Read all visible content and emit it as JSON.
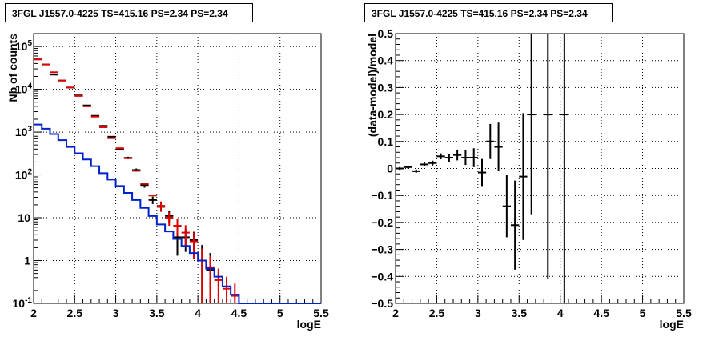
{
  "chart_data": [
    {
      "type": "step+errorbar",
      "title": "3FGL J1557.0-4225 TS=415.16 PS=2.34 PS=2.34",
      "xlabel": "logE",
      "ylabel": "Nb of counts",
      "xlim": [
        2,
        5.5
      ],
      "ylim": [
        0.1,
        200000
      ],
      "log_y": true,
      "grid": true,
      "x_ticks": [
        "2",
        "2.5",
        "3",
        "3.5",
        "4",
        "4.5",
        "5",
        "5.5"
      ],
      "y_ticks": [
        {
          "base": "10",
          "exp": "-1",
          "value": 0.1
        },
        {
          "base": "1",
          "exp": "",
          "value": 1
        },
        {
          "base": "10",
          "exp": "",
          "value": 10
        },
        {
          "base": "10",
          "exp": "2",
          "value": 100
        },
        {
          "base": "10",
          "exp": "3",
          "value": 1000
        },
        {
          "base": "10",
          "exp": "4",
          "value": 10000
        },
        {
          "base": "10",
          "exp": "5",
          "value": 100000
        }
      ],
      "bin_width": 0.1,
      "series": [
        {
          "color": "#000000",
          "kind": "errorbar",
          "x": [
            2.05,
            2.15,
            2.25,
            2.35,
            2.45,
            2.55,
            2.65,
            2.75,
            2.85,
            2.95,
            3.05,
            3.15,
            3.25,
            3.35,
            3.45,
            3.55,
            3.65,
            3.75,
            3.85,
            3.95,
            4.05,
            4.15
          ],
          "y": [
            50000,
            38000,
            22000,
            16000,
            11000,
            7200,
            4200,
            2400,
            1400,
            780,
            400,
            250,
            130,
            58,
            26,
            18,
            11,
            3.5,
            3.5,
            3,
            1,
            0.6
          ],
          "yerr_lo": [
            220,
            190,
            150,
            125,
            105,
            85,
            65,
            49,
            37,
            28,
            20,
            16,
            11,
            7.6,
            5.1,
            4.2,
            3.3,
            2.2,
            1.9,
            1.7,
            0.9,
            0.55
          ],
          "yerr_hi": [
            220,
            190,
            150,
            125,
            105,
            85,
            65,
            49,
            37,
            28,
            20,
            16,
            11,
            7.6,
            5.1,
            4.2,
            3.3,
            1.9,
            1.9,
            1.7,
            1.3,
            0.9
          ]
        },
        {
          "color": "#dd0000",
          "kind": "errorbar",
          "x": [
            2.05,
            2.15,
            2.25,
            2.35,
            2.45,
            2.55,
            2.65,
            2.75,
            2.85,
            2.95,
            3.05,
            3.15,
            3.25,
            3.35,
            3.45,
            3.55,
            3.65,
            3.75,
            3.85,
            3.95,
            4.05,
            4.15,
            4.25,
            4.35,
            4.45
          ],
          "y": [
            50000,
            38000,
            25000,
            16000,
            11000,
            7000,
            4000,
            2300,
            1300,
            720,
            420,
            245,
            125,
            62,
            33,
            19,
            10,
            6.5,
            4.5,
            2.8,
            1,
            0.7,
            0.35,
            0.22,
            0.15
          ],
          "yerr_lo": [
            0,
            0,
            0,
            0,
            0,
            0,
            0,
            0,
            0,
            0,
            0,
            0,
            0,
            0,
            0,
            5,
            3.5,
            2.8,
            2.2,
            1.7,
            0.9,
            0.6,
            0.3,
            0.2,
            0.14
          ],
          "yerr_hi": [
            0,
            0,
            0,
            0,
            0,
            0,
            0,
            0,
            0,
            0,
            0,
            0,
            0,
            0,
            0,
            5,
            3.5,
            2.8,
            2.2,
            1.7,
            0.9,
            0.6,
            0.3,
            0.2,
            0.14
          ]
        },
        {
          "color": "#0022cc",
          "kind": "step",
          "x_edges": [
            2.0,
            2.1,
            2.2,
            2.3,
            2.4,
            2.5,
            2.6,
            2.7,
            2.8,
            2.9,
            3.0,
            3.1,
            3.2,
            3.3,
            3.4,
            3.5,
            3.6,
            3.7,
            3.8,
            3.9,
            4.0,
            4.1,
            4.2,
            4.3,
            4.4,
            4.5,
            5.5
          ],
          "y": [
            1500,
            1200,
            900,
            650,
            450,
            320,
            230,
            160,
            110,
            78,
            55,
            38,
            26,
            17,
            11,
            7,
            4.8,
            3.2,
            2.2,
            1.5,
            1.0,
            0.65,
            0.42,
            0.25,
            0.16,
            0.1
          ]
        }
      ]
    },
    {
      "type": "errorbar",
      "title": "3FGL J1557.0-4225 TS=415.16 PS=2.34 PS=2.34",
      "xlabel": "logE",
      "ylabel": "(data-model)/model",
      "xlim": [
        2,
        5.5
      ],
      "ylim": [
        -0.5,
        0.5
      ],
      "grid": true,
      "x_ticks": [
        "2",
        "2.5",
        "3",
        "3.5",
        "4",
        "4.5",
        "5",
        "5.5"
      ],
      "y_ticks": [
        "−0.5",
        "−0.4",
        "−0.3",
        "−0.2",
        "−0.1",
        "0",
        "0.1",
        "0.2",
        "0.3",
        "0.4",
        "0.5"
      ],
      "bin_width": 0.1,
      "series": [
        {
          "color": "#000000",
          "x": [
            2.05,
            2.15,
            2.25,
            2.35,
            2.45,
            2.55,
            2.65,
            2.75,
            2.85,
            2.95,
            3.05,
            3.15,
            3.25,
            3.35,
            3.45,
            3.55,
            3.65,
            3.85,
            4.05
          ],
          "y": [
            0.0,
            0.005,
            -0.01,
            0.015,
            0.02,
            0.045,
            0.04,
            0.05,
            0.04,
            0.04,
            -0.015,
            0.1,
            0.08,
            -0.14,
            -0.21,
            -0.03,
            0.2,
            0.2,
            0.2
          ],
          "yerr_lo": [
            0.005,
            0.005,
            0.006,
            0.007,
            0.009,
            0.011,
            0.015,
            0.02,
            0.027,
            0.035,
            0.05,
            0.065,
            0.09,
            0.115,
            0.165,
            0.235,
            0.37,
            0.61,
            0.7
          ],
          "yerr_hi": [
            0.005,
            0.005,
            0.006,
            0.007,
            0.009,
            0.011,
            0.015,
            0.02,
            0.027,
            0.035,
            0.05,
            0.065,
            0.09,
            0.115,
            0.165,
            0.235,
            0.37,
            0.61,
            0.7
          ]
        }
      ]
    }
  ]
}
